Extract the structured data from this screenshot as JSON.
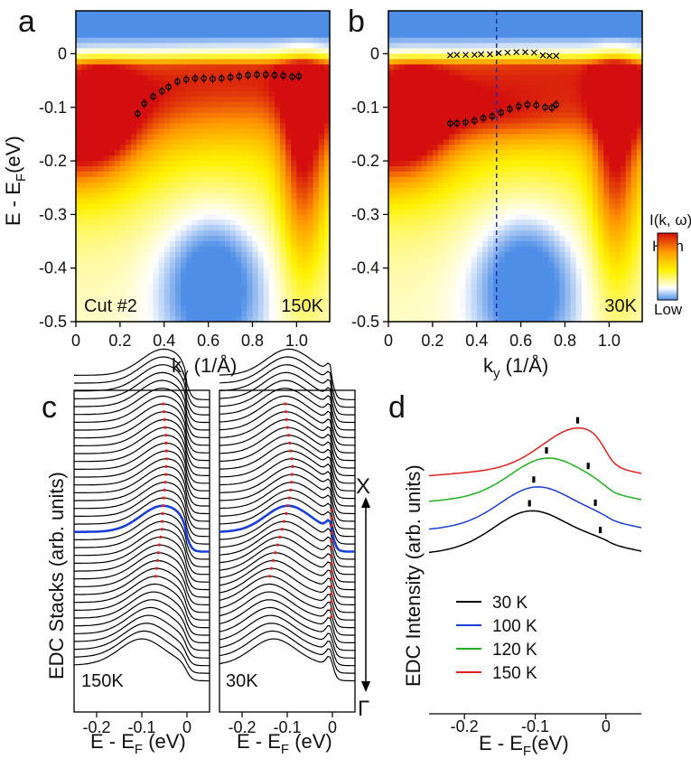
{
  "panel_letters": [
    "a",
    "b",
    "c",
    "d"
  ],
  "chart_data": [
    {
      "panel": "a",
      "type": "heatmap",
      "xlabel_main": "k",
      "xlabel_sub": "y",
      "xlabel_units": " (1/Å)",
      "ylabel_main": "E - E",
      "ylabel_sub": "F",
      "ylabel_units": "(eV)",
      "xlim": [
        0,
        1.15
      ],
      "ylim": [
        -0.5,
        0.08
      ],
      "xticks": [
        "0",
        "0.2",
        "0.4",
        "0.6",
        "0.8",
        "1.0"
      ],
      "yticks": [
        "0",
        "-0.1",
        "-0.2",
        "-0.3",
        "-0.4",
        "-0.5"
      ],
      "annotations": [
        "Cut #2",
        "150K"
      ],
      "dispersion_points": [
        [
          0.28,
          -0.112
        ],
        [
          0.31,
          -0.093
        ],
        [
          0.35,
          -0.08
        ],
        [
          0.39,
          -0.07
        ],
        [
          0.42,
          -0.062
        ],
        [
          0.46,
          -0.052
        ],
        [
          0.5,
          -0.048
        ],
        [
          0.54,
          -0.046
        ],
        [
          0.58,
          -0.046
        ],
        [
          0.62,
          -0.047
        ],
        [
          0.66,
          -0.046
        ],
        [
          0.7,
          -0.044
        ],
        [
          0.74,
          -0.042
        ],
        [
          0.78,
          -0.04
        ],
        [
          0.82,
          -0.039
        ],
        [
          0.86,
          -0.039
        ],
        [
          0.9,
          -0.04
        ],
        [
          0.94,
          -0.041
        ],
        [
          0.98,
          -0.043
        ],
        [
          1.01,
          -0.042
        ]
      ]
    },
    {
      "panel": "b",
      "type": "heatmap",
      "xlabel_main": "k",
      "xlabel_sub": "y",
      "xlabel_units": " (1/Å)",
      "xlim": [
        0,
        1.15
      ],
      "ylim": [
        -0.5,
        0.08
      ],
      "xticks": [
        "0",
        "0.2",
        "0.4",
        "0.6",
        "0.8",
        "1.0"
      ],
      "yticks": [
        "0",
        "-0.1",
        "-0.2",
        "-0.3",
        "-0.4",
        "-0.5"
      ],
      "annotations": [
        "30K"
      ],
      "vline_ky": 0.49,
      "upper_band_points": [
        [
          0.28,
          -0.003
        ],
        [
          0.31,
          -0.002
        ],
        [
          0.35,
          -0.002
        ],
        [
          0.39,
          -0.002
        ],
        [
          0.42,
          -0.001
        ],
        [
          0.46,
          -0.001
        ],
        [
          0.5,
          0.001
        ],
        [
          0.54,
          0.002
        ],
        [
          0.58,
          0.003
        ],
        [
          0.62,
          0.003
        ],
        [
          0.66,
          0.002
        ],
        [
          0.7,
          -0.003
        ],
        [
          0.73,
          -0.004
        ],
        [
          0.76,
          -0.004
        ]
      ],
      "lower_band_points": [
        [
          0.28,
          -0.13
        ],
        [
          0.31,
          -0.13
        ],
        [
          0.35,
          -0.128
        ],
        [
          0.39,
          -0.125
        ],
        [
          0.43,
          -0.12
        ],
        [
          0.47,
          -0.117
        ],
        [
          0.51,
          -0.11
        ],
        [
          0.55,
          -0.103
        ],
        [
          0.59,
          -0.098
        ],
        [
          0.63,
          -0.095
        ],
        [
          0.67,
          -0.096
        ],
        [
          0.71,
          -0.1
        ],
        [
          0.74,
          -0.101
        ],
        [
          0.76,
          -0.095
        ]
      ],
      "colorbar": {
        "title": "I(k, ω)",
        "high": "High",
        "low": "Low"
      }
    },
    {
      "panel": "c",
      "type": "line",
      "ylabel": "EDC Stacks (arb. units)",
      "xlabel_main": "E - E",
      "xlabel_sub": "F",
      "xlabel_units": " (eV)",
      "xlim": [
        -0.25,
        0.05
      ],
      "xticks": [
        "-0.2",
        "-0.1",
        "0"
      ],
      "subpanels": [
        "150K",
        "30K"
      ],
      "arrow_top_label": "X",
      "arrow_bottom_label": "Γ",
      "curve_count": 38,
      "highlight_index": 17
    },
    {
      "panel": "d",
      "type": "line",
      "ylabel": "EDC Intensity (arb. units)",
      "xlabel_main": "E - E",
      "xlabel_sub": "F",
      "xlabel_units": "(eV)",
      "xlim": [
        -0.25,
        0.05
      ],
      "xticks": [
        "-0.2",
        "-0.1",
        "0"
      ],
      "series": [
        {
          "name": "30 K",
          "color": "#000000",
          "peak_x": -0.108,
          "tick_x": [
            -0.108,
            -0.008
          ]
        },
        {
          "name": "100 K",
          "color": "#1a3fd4",
          "peak_x": -0.1,
          "tick_x": [
            -0.102,
            -0.015
          ]
        },
        {
          "name": "120 K",
          "color": "#1fb21f",
          "peak_x": -0.085,
          "tick_x": [
            -0.084,
            -0.025
          ]
        },
        {
          "name": "150 K",
          "color": "#e0201b",
          "peak_x": -0.04,
          "tick_x": [
            -0.04
          ]
        }
      ]
    }
  ]
}
